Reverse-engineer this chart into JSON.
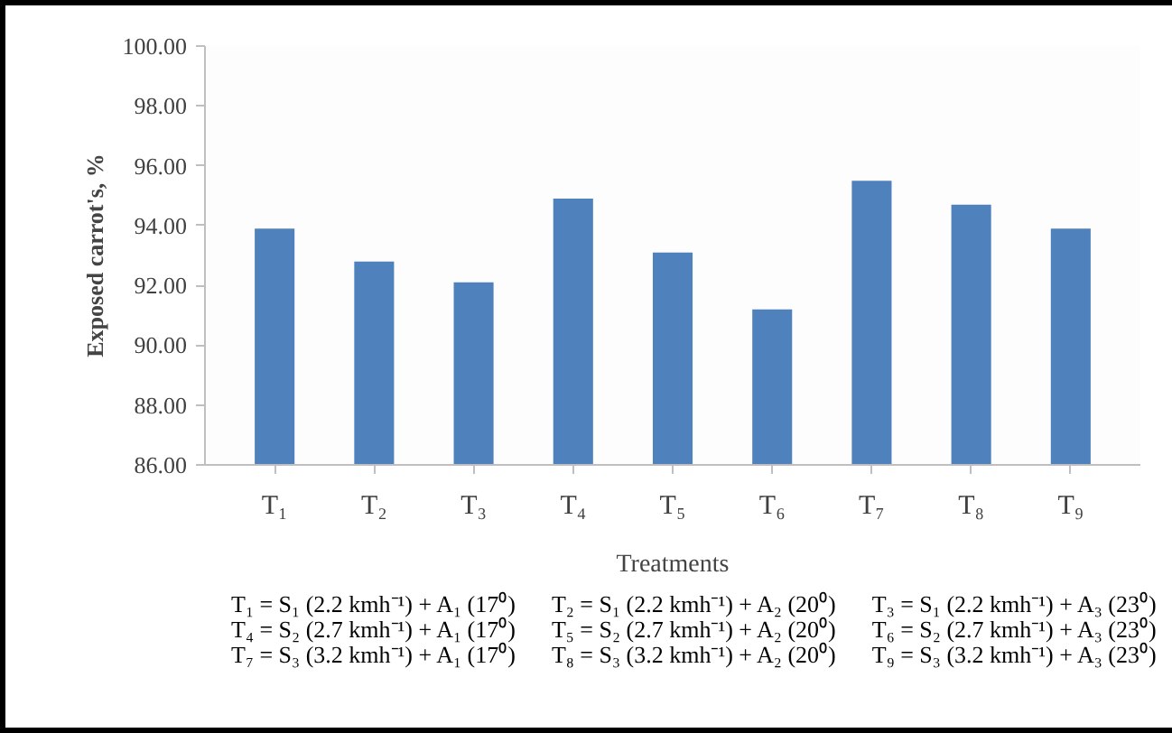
{
  "chart_data": {
    "type": "bar",
    "xlabel": "Treatments",
    "ylabel": "Exposed carrot's, %",
    "categories": [
      "T₁",
      "T₂",
      "T₃",
      "T₄",
      "T₅",
      "T₆",
      "T₇",
      "T₈",
      "T₉"
    ],
    "values": [
      93.9,
      92.8,
      92.1,
      94.9,
      93.1,
      91.2,
      95.5,
      94.7,
      93.9
    ],
    "color": "#4f81bd",
    "ylim": [
      86,
      100
    ],
    "yticks": [
      {
        "value": 86,
        "label": "86.00"
      },
      {
        "value": 88,
        "label": "88.00"
      },
      {
        "value": 90,
        "label": "90.00"
      },
      {
        "value": 92,
        "label": "92.00"
      },
      {
        "value": 94,
        "label": "94.00"
      },
      {
        "value": 96,
        "label": "96.00"
      },
      {
        "value": 98,
        "label": "98.00"
      },
      {
        "value": 100,
        "label": "100.00"
      }
    ],
    "grid": false,
    "annotations": [
      "T₁ = S₁ (2.2 kmh⁻¹) + A₁ (17⁰)",
      "T₂ = S₁ (2.2 kmh⁻¹) + A₂ (20⁰)",
      "T₃ = S₁ (2.2 kmh⁻¹) + A₃ (23⁰)",
      "T₄ = S₂ (2.7 kmh⁻¹) + A₁ (17⁰)",
      "T₅ = S₂ (2.7 kmh⁻¹) + A₂ (20⁰)",
      "T₆ = S₂ (2.7 kmh⁻¹) + A₃ (23⁰)",
      "T₇ = S₃ (3.2 kmh⁻¹) + A₁ (17⁰)",
      "T₈ = S₃ (3.2 kmh⁻¹) + A₂ (20⁰)",
      "T₉ = S₃ (3.2 kmh⁻¹) + A₃ (23⁰)"
    ]
  }
}
